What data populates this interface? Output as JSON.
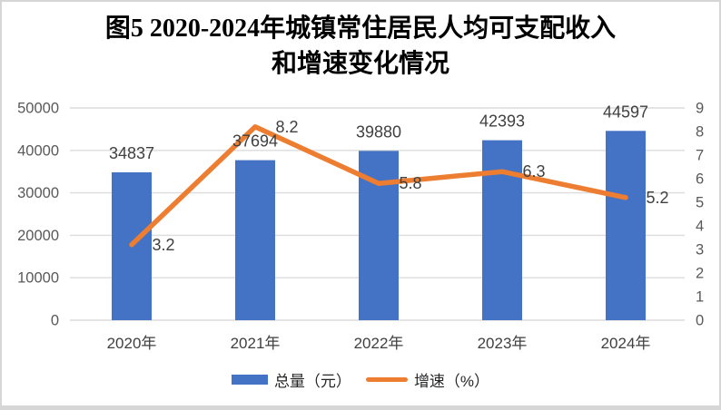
{
  "title": {
    "line1": "图5  2020-2024年城镇常住居民人均可支配收入",
    "line2": "和增速变化情况"
  },
  "chart_data": {
    "type": "combo-bar-line",
    "categories": [
      "2020年",
      "2021年",
      "2022年",
      "2023年",
      "2024年"
    ],
    "series": [
      {
        "name": "总量（元）",
        "type": "bar",
        "axis": "left",
        "color": "#4472C4",
        "values": [
          34837,
          37694,
          39880,
          42393,
          44597
        ]
      },
      {
        "name": "增速（%）",
        "type": "line",
        "axis": "right",
        "color": "#ED7D31",
        "values": [
          3.2,
          8.2,
          5.8,
          6.3,
          5.2
        ]
      }
    ],
    "left_axis": {
      "min": 0,
      "max": 50000,
      "step": 10000,
      "ticks": [
        "0",
        "10000",
        "20000",
        "30000",
        "40000",
        "50000"
      ]
    },
    "right_axis": {
      "min": 0,
      "max": 9,
      "step": 1,
      "ticks": [
        "0",
        "1",
        "2",
        "3",
        "4",
        "5",
        "6",
        "7",
        "8",
        "9"
      ]
    },
    "grid": "horizontal-only",
    "legend_position": "bottom",
    "colors": {
      "gridline": "#DCDCDC",
      "axis_label": "#595959",
      "data_label": "#404040",
      "category_label": "#3F3F3F",
      "frame_border": "#D6D6D6"
    }
  }
}
